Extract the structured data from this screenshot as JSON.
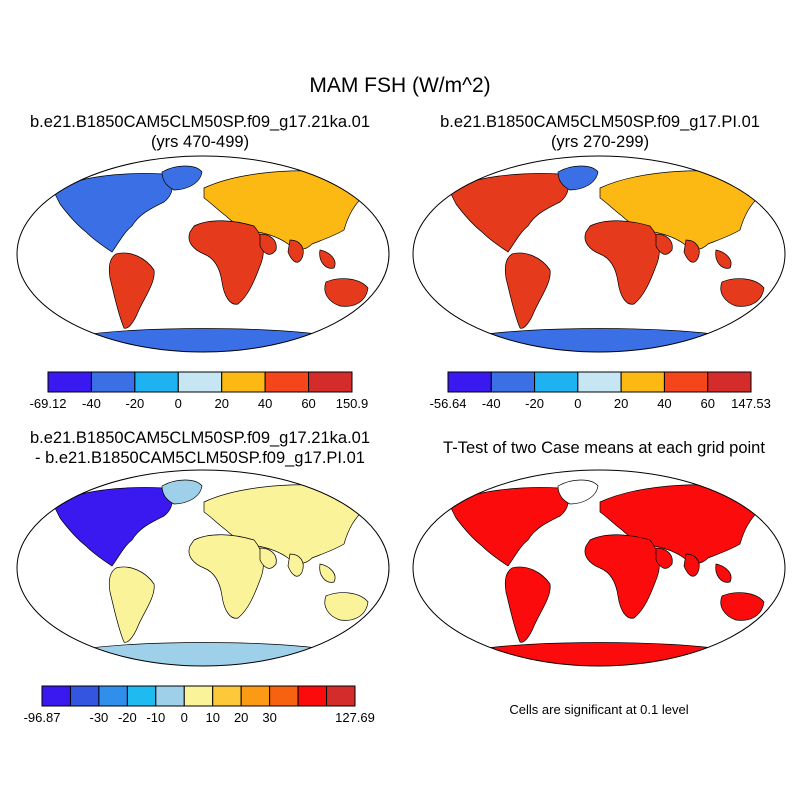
{
  "title": "MAM FSH (W/m^2)",
  "panels": {
    "case1": {
      "title": "b.e21.B1850CAM5CLM50SP.f09_g17.21ka.01",
      "subtitle": "(yrs 470-499)"
    },
    "case2": {
      "title": "b.e21.B1850CAM5CLM50SP.f09_g17.PI.01",
      "subtitle": "(yrs 270-299)"
    },
    "diff": {
      "title": "b.e21.B1850CAM5CLM50SP.f09_g17.21ka.01",
      "subtitle": "- b.e21.B1850CAM5CLM50SP.f09_g17.PI.01"
    },
    "ttest": {
      "title": "T-Test of two Case means at each grid point",
      "note": "Cells are significant at 0.1 level"
    }
  },
  "colorbars": {
    "case1": {
      "colors": [
        "#3a19f0",
        "#3a6fe6",
        "#1fb2f0",
        "#c6e6f4",
        "#fdb913",
        "#f5451b",
        "#d42b2b"
      ],
      "labels": [
        "-69.12",
        "-40",
        "-20",
        "0",
        "20",
        "40",
        "60",
        "150.9"
      ]
    },
    "case2": {
      "colors": [
        "#3a19f0",
        "#3a6fe6",
        "#1fb2f0",
        "#c6e6f4",
        "#fdb913",
        "#f5451b",
        "#d42b2b"
      ],
      "labels": [
        "-56.64",
        "-40",
        "-20",
        "0",
        "20",
        "40",
        "60",
        "147.53"
      ]
    },
    "diff": {
      "colors": [
        "#3a19f0",
        "#3455e0",
        "#2f8fea",
        "#1fbaf0",
        "#9fd0ea",
        "#fbf39a",
        "#fdc93a",
        "#fb9a14",
        "#f6620f",
        "#fb0b0b",
        "#d42b2b"
      ],
      "labels": [
        "-96.87",
        "",
        "-30",
        "-20",
        "-10",
        "0",
        "10",
        "20",
        "30",
        "",
        "",
        "127.69"
      ]
    }
  },
  "map_colors": {
    "case_land": "#e63a1c",
    "case_north": "#fdb913",
    "case_cold": "#3a6fe6",
    "case_ice": "#c6e6f4",
    "diff_land": "#fbf39a",
    "diff_cold": "#3a19f0",
    "diff_pale": "#9fd0ea",
    "ttest_land": "#fb0b0b"
  }
}
